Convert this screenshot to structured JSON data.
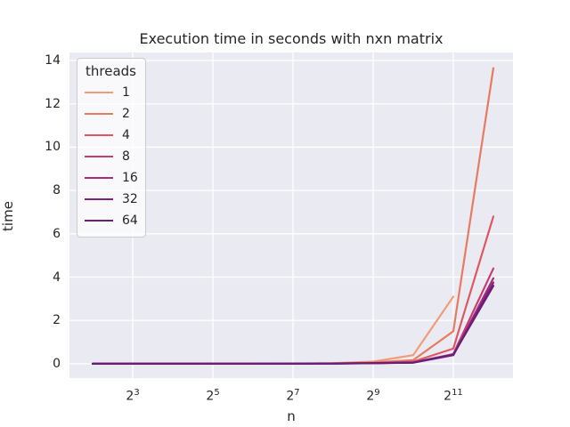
{
  "chart_data": {
    "type": "line",
    "title": "Execution time in seconds with nxn matrix",
    "xlabel": "n",
    "ylabel": "time",
    "x_scale": "log2",
    "grid": true,
    "background_color": "#eaeaf2",
    "gridline_color": "#ffffff",
    "text_color": "#262626",
    "x": [
      4,
      8,
      16,
      32,
      64,
      128,
      256,
      512,
      1024,
      2048,
      4096
    ],
    "series": [
      {
        "name": "1",
        "color": "#f09c77",
        "y": [
          0.001,
          0.001,
          0.002,
          0.003,
          0.005,
          0.01,
          0.03,
          0.1,
          0.4,
          3.1,
          null
        ]
      },
      {
        "name": "2",
        "color": "#e87a60",
        "y": [
          0.001,
          0.001,
          0.002,
          0.003,
          0.005,
          0.01,
          0.02,
          0.06,
          0.17,
          1.5,
          13.65
        ]
      },
      {
        "name": "4",
        "color": "#de5862",
        "y": [
          0.001,
          0.001,
          0.002,
          0.003,
          0.004,
          0.008,
          0.015,
          0.04,
          0.1,
          0.7,
          6.8
        ]
      },
      {
        "name": "8",
        "color": "#c53e6f",
        "y": [
          0.001,
          0.001,
          0.002,
          0.003,
          0.004,
          0.007,
          0.012,
          0.03,
          0.06,
          0.45,
          4.4
        ]
      },
      {
        "name": "16",
        "color": "#a62c77",
        "y": [
          0.001,
          0.001,
          0.002,
          0.003,
          0.004,
          0.006,
          0.01,
          0.025,
          0.05,
          0.4,
          3.95
        ]
      },
      {
        "name": "32",
        "color": "#85207f",
        "y": [
          0.002,
          0.002,
          0.002,
          0.003,
          0.004,
          0.006,
          0.01,
          0.025,
          0.05,
          0.4,
          3.75
        ]
      },
      {
        "name": "64",
        "color": "#671f7a",
        "y": [
          0.003,
          0.003,
          0.003,
          0.004,
          0.005,
          0.008,
          0.012,
          0.03,
          0.06,
          0.42,
          3.6
        ]
      }
    ],
    "yticks": [
      0,
      2,
      4,
      6,
      8,
      10,
      12,
      14
    ],
    "xtick_exponents": [
      3,
      5,
      7,
      9,
      11
    ],
    "xtick_base": "2",
    "ylim": [
      -0.66,
      14.37
    ],
    "xlim_log2": [
      1.42,
      12.49
    ],
    "legend": {
      "title": "threads",
      "position": "upper left",
      "entries": [
        "1",
        "2",
        "4",
        "8",
        "16",
        "32",
        "64"
      ]
    }
  }
}
